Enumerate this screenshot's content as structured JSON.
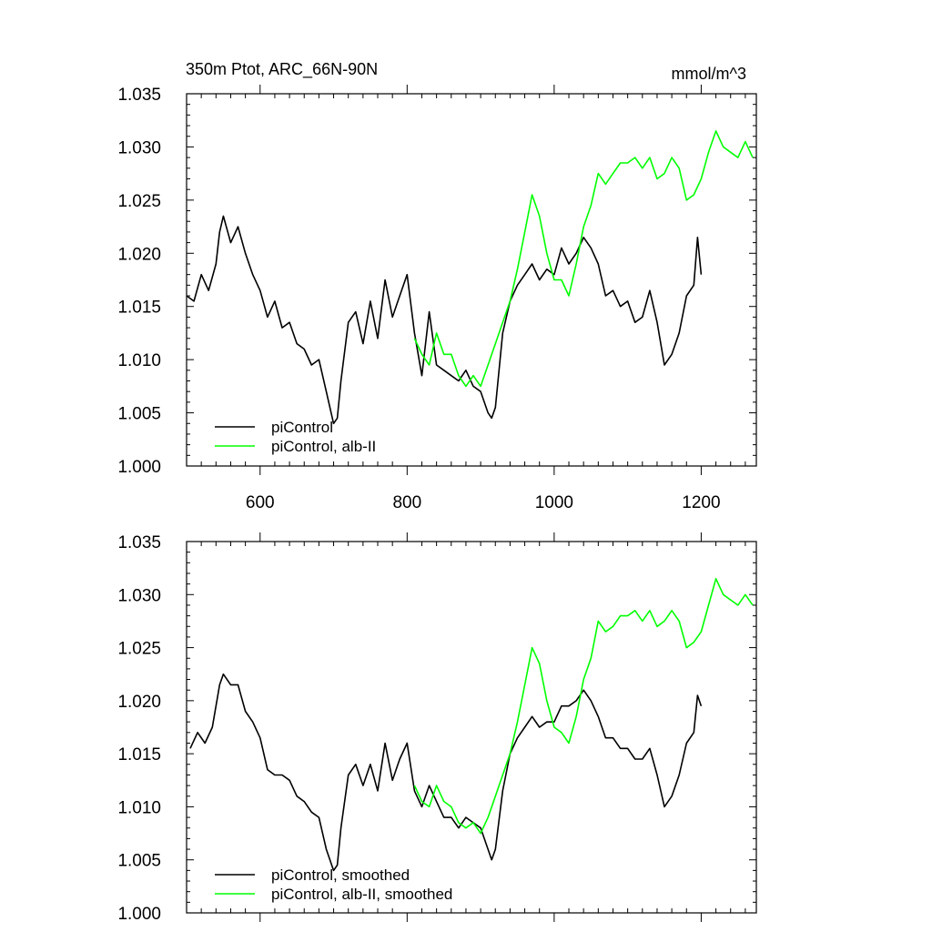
{
  "chart_data": [
    {
      "type": "line",
      "title": "350m Ptot, ARC_66N-90N",
      "units_label": "mmol/m^3",
      "xlim": [
        500,
        1275
      ],
      "ylim": [
        1.0,
        1.035
      ],
      "x_ticks": [
        600,
        800,
        1000,
        1200
      ],
      "x_tick_labels": [
        "600",
        "800",
        "1000",
        "1200"
      ],
      "y_ticks": [
        1.0,
        1.005,
        1.01,
        1.015,
        1.02,
        1.025,
        1.03,
        1.035
      ],
      "y_tick_labels": [
        "1.000",
        "1.005",
        "1.010",
        "1.015",
        "1.020",
        "1.025",
        "1.030",
        "1.035"
      ],
      "grid": false,
      "legend_position": "bottom-left",
      "series": [
        {
          "name": "piControl",
          "color": "#000000",
          "x": [
            500,
            510,
            520,
            530,
            540,
            545,
            550,
            560,
            570,
            580,
            590,
            600,
            610,
            620,
            630,
            640,
            650,
            660,
            670,
            680,
            690,
            700,
            705,
            710,
            720,
            730,
            740,
            750,
            760,
            770,
            780,
            790,
            800,
            810,
            820,
            830,
            840,
            850,
            860,
            870,
            880,
            890,
            900,
            910,
            915,
            920,
            930,
            940,
            950,
            960,
            970,
            980,
            990,
            1000,
            1010,
            1020,
            1030,
            1040,
            1050,
            1060,
            1070,
            1080,
            1090,
            1100,
            1110,
            1120,
            1130,
            1140,
            1150,
            1160,
            1170,
            1180,
            1190,
            1195,
            1200
          ],
          "y": [
            1.016,
            1.0155,
            1.018,
            1.0165,
            1.019,
            1.022,
            1.0235,
            1.021,
            1.0225,
            1.02,
            1.018,
            1.0165,
            1.014,
            1.0155,
            1.013,
            1.0135,
            1.0115,
            1.011,
            1.0095,
            1.01,
            1.007,
            1.004,
            1.0045,
            1.008,
            1.0135,
            1.0145,
            1.0115,
            1.0155,
            1.012,
            1.0175,
            1.014,
            1.016,
            1.018,
            1.0125,
            1.0085,
            1.0145,
            1.0095,
            1.009,
            1.0085,
            1.008,
            1.009,
            1.0075,
            1.007,
            1.005,
            1.0045,
            1.0055,
            1.0125,
            1.0155,
            1.017,
            1.018,
            1.019,
            1.0175,
            1.0185,
            1.018,
            1.0205,
            1.019,
            1.02,
            1.0215,
            1.0205,
            1.019,
            1.016,
            1.0165,
            1.015,
            1.0155,
            1.0135,
            1.014,
            1.0165,
            1.0135,
            1.0095,
            1.0105,
            1.0125,
            1.016,
            1.017,
            1.0215,
            1.018
          ]
        },
        {
          "name": "piControl, alb-II",
          "color": "#00ff00",
          "x": [
            810,
            820,
            830,
            840,
            850,
            860,
            870,
            880,
            890,
            900,
            910,
            920,
            930,
            940,
            950,
            960,
            970,
            980,
            990,
            1000,
            1010,
            1020,
            1030,
            1040,
            1050,
            1060,
            1070,
            1080,
            1090,
            1100,
            1110,
            1120,
            1130,
            1140,
            1150,
            1160,
            1170,
            1180,
            1190,
            1200,
            1210,
            1220,
            1230,
            1240,
            1250,
            1260,
            1270
          ],
          "y": [
            1.012,
            1.0105,
            1.0095,
            1.0125,
            1.0105,
            1.0105,
            1.0085,
            1.0075,
            1.0085,
            1.0075,
            1.0095,
            1.0115,
            1.0135,
            1.0155,
            1.0185,
            1.022,
            1.0255,
            1.0235,
            1.02,
            1.0175,
            1.0175,
            1.016,
            1.019,
            1.0225,
            1.0245,
            1.0275,
            1.0265,
            1.0275,
            1.0285,
            1.0285,
            1.029,
            1.028,
            1.029,
            1.027,
            1.0275,
            1.029,
            1.028,
            1.025,
            1.0255,
            1.027,
            1.0295,
            1.0315,
            1.03,
            1.0295,
            1.029,
            1.0305,
            1.029
          ]
        }
      ]
    },
    {
      "type": "line",
      "xlim": [
        500,
        1275
      ],
      "ylim": [
        1.0,
        1.035
      ],
      "x_ticks": [
        600,
        800,
        1000,
        1200
      ],
      "y_ticks": [
        1.0,
        1.005,
        1.01,
        1.015,
        1.02,
        1.025,
        1.03,
        1.035
      ],
      "y_tick_labels": [
        "1.000",
        "1.005",
        "1.010",
        "1.015",
        "1.020",
        "1.025",
        "1.030",
        "1.035"
      ],
      "grid": false,
      "legend_position": "bottom-left",
      "series": [
        {
          "name": "piControl, smoothed",
          "color": "#000000",
          "x": [
            505,
            515,
            525,
            535,
            545,
            550,
            560,
            570,
            580,
            590,
            600,
            610,
            620,
            630,
            640,
            650,
            660,
            670,
            680,
            690,
            700,
            705,
            710,
            720,
            730,
            740,
            750,
            760,
            770,
            780,
            790,
            800,
            810,
            820,
            830,
            840,
            850,
            860,
            870,
            880,
            890,
            900,
            910,
            915,
            920,
            930,
            940,
            950,
            960,
            970,
            980,
            990,
            1000,
            1010,
            1020,
            1030,
            1040,
            1050,
            1060,
            1070,
            1080,
            1090,
            1100,
            1110,
            1120,
            1130,
            1140,
            1150,
            1160,
            1170,
            1180,
            1190,
            1195,
            1200
          ],
          "y": [
            1.0155,
            1.017,
            1.016,
            1.0175,
            1.0215,
            1.0225,
            1.0215,
            1.0215,
            1.019,
            1.018,
            1.0165,
            1.0135,
            1.013,
            1.013,
            1.0125,
            1.011,
            1.0105,
            1.0095,
            1.009,
            1.006,
            1.004,
            1.0045,
            1.008,
            1.013,
            1.014,
            1.012,
            1.014,
            1.0115,
            1.016,
            1.0125,
            1.0145,
            1.016,
            1.0115,
            1.01,
            1.012,
            1.0105,
            1.009,
            1.009,
            1.008,
            1.009,
            1.0085,
            1.008,
            1.006,
            1.005,
            1.006,
            1.0115,
            1.015,
            1.0165,
            1.0175,
            1.0185,
            1.0175,
            1.018,
            1.018,
            1.0195,
            1.0195,
            1.02,
            1.021,
            1.02,
            1.0185,
            1.0165,
            1.0165,
            1.0155,
            1.0155,
            1.0145,
            1.0145,
            1.0155,
            1.013,
            1.01,
            1.011,
            1.013,
            1.016,
            1.017,
            1.0205,
            1.0195
          ]
        },
        {
          "name": "piControl, alb-II, smoothed",
          "color": "#00ff00",
          "x": [
            810,
            820,
            830,
            840,
            850,
            860,
            870,
            880,
            890,
            900,
            910,
            920,
            930,
            940,
            950,
            960,
            970,
            980,
            990,
            1000,
            1010,
            1020,
            1030,
            1040,
            1050,
            1060,
            1070,
            1080,
            1090,
            1100,
            1110,
            1120,
            1130,
            1140,
            1150,
            1160,
            1170,
            1180,
            1190,
            1200,
            1210,
            1220,
            1230,
            1240,
            1250,
            1260,
            1270
          ],
          "y": [
            1.012,
            1.0105,
            1.01,
            1.012,
            1.0105,
            1.01,
            1.0085,
            1.008,
            1.0085,
            1.0075,
            1.009,
            1.011,
            1.013,
            1.015,
            1.018,
            1.0215,
            1.025,
            1.0235,
            1.02,
            1.0175,
            1.017,
            1.016,
            1.0185,
            1.022,
            1.024,
            1.0275,
            1.0265,
            1.027,
            1.028,
            1.028,
            1.0285,
            1.0275,
            1.0285,
            1.027,
            1.0275,
            1.0285,
            1.0275,
            1.025,
            1.0255,
            1.0265,
            1.029,
            1.0315,
            1.03,
            1.0295,
            1.029,
            1.03,
            1.029
          ]
        }
      ]
    }
  ]
}
